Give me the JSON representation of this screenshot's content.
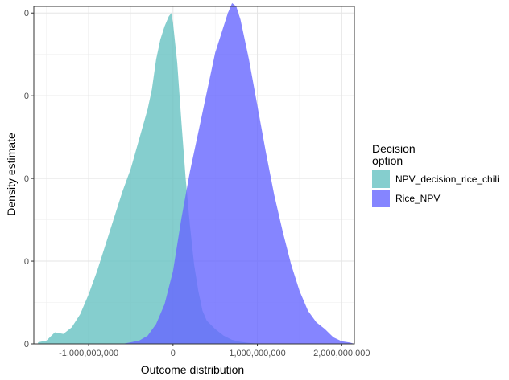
{
  "chart_data": {
    "type": "area",
    "title": "",
    "xlabel": "Outcome distribution",
    "ylabel": "Density estimate",
    "xlim": [
      -1650000000,
      2150000000
    ],
    "ylim": [
      0,
      1.02
    ],
    "x_ticks": [
      -1000000000,
      0,
      1000000000,
      2000000000
    ],
    "x_tick_labels": [
      "-1,000,000,000",
      "0",
      "1,000,000,000",
      "2,000,000,000"
    ],
    "y_ticks": [
      0,
      0.25,
      0.5,
      0.75,
      1.0
    ],
    "y_tick_labels": [
      "0",
      "0",
      "0",
      "0",
      "0"
    ],
    "grid": true,
    "legend": {
      "title": "Decision\noption",
      "position": "right"
    },
    "series": [
      {
        "name": "NPV_decision_rice_chili",
        "color": "#66c2c2",
        "x": [
          -1600000000,
          -1500000000,
          -1400000000,
          -1300000000,
          -1200000000,
          -1100000000,
          -1000000000,
          -900000000,
          -800000000,
          -700000000,
          -600000000,
          -500000000,
          -400000000,
          -300000000,
          -250000000,
          -200000000,
          -150000000,
          -100000000,
          -50000000,
          -20000000,
          0,
          50000000,
          100000000,
          150000000,
          200000000,
          250000000,
          300000000,
          350000000,
          400000000,
          500000000,
          600000000,
          700000000,
          800000000,
          900000000,
          1000000000,
          1100000000
        ],
        "y": [
          0.005,
          0.01,
          0.035,
          0.03,
          0.05,
          0.09,
          0.15,
          0.22,
          0.3,
          0.38,
          0.46,
          0.53,
          0.62,
          0.71,
          0.77,
          0.86,
          0.92,
          0.96,
          0.99,
          1.0,
          0.97,
          0.85,
          0.67,
          0.5,
          0.36,
          0.24,
          0.16,
          0.1,
          0.07,
          0.045,
          0.025,
          0.012,
          0.006,
          0.003,
          0.001,
          0.0
        ]
      },
      {
        "name": "Rice_NPV",
        "color": "#6666ff",
        "x": [
          -600000000,
          -500000000,
          -400000000,
          -300000000,
          -200000000,
          -100000000,
          0,
          100000000,
          200000000,
          300000000,
          400000000,
          500000000,
          600000000,
          650000000,
          700000000,
          750000000,
          800000000,
          900000000,
          1000000000,
          1100000000,
          1200000000,
          1300000000,
          1400000000,
          1500000000,
          1600000000,
          1700000000,
          1800000000,
          1900000000,
          2000000000,
          2100000000,
          2150000000
        ],
        "y": [
          0.0,
          0.005,
          0.01,
          0.025,
          0.06,
          0.12,
          0.22,
          0.38,
          0.52,
          0.64,
          0.76,
          0.88,
          0.96,
          1.0,
          1.03,
          1.02,
          0.98,
          0.86,
          0.72,
          0.58,
          0.45,
          0.34,
          0.24,
          0.16,
          0.1,
          0.065,
          0.045,
          0.02,
          0.008,
          0.004,
          0.0
        ]
      }
    ]
  }
}
